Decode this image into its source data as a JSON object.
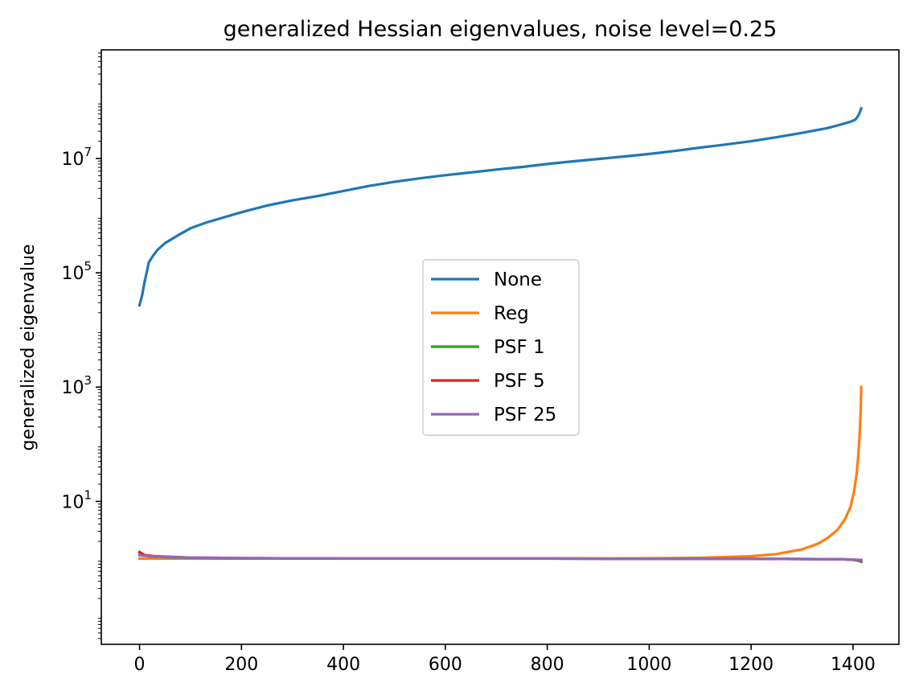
{
  "chart_data": {
    "type": "line",
    "title": "generalized Hessian eigenvalues, noise level=0.25",
    "xlabel": "",
    "ylabel": "generalized eigenvalue",
    "yscale": "log",
    "xlim": [
      -75,
      1490
    ],
    "ylim_log10": [
      -1.5,
      8.9
    ],
    "xticks": [
      0,
      200,
      400,
      600,
      800,
      1000,
      1200,
      1400
    ],
    "yticks": [
      {
        "exp": 1,
        "base": "10",
        "sup": "1"
      },
      {
        "exp": 3,
        "base": "10",
        "sup": "3"
      },
      {
        "exp": 5,
        "base": "10",
        "sup": "5"
      },
      {
        "exp": 7,
        "base": "10",
        "sup": "7"
      }
    ],
    "legend_position": "center",
    "grid": false,
    "series": [
      {
        "name": "None",
        "color": "#1f77b4",
        "points": [
          [
            0,
            27000
          ],
          [
            5,
            40000
          ],
          [
            10,
            70000
          ],
          [
            15,
            110000
          ],
          [
            18,
            150000
          ],
          [
            25,
            190000
          ],
          [
            35,
            250000
          ],
          [
            50,
            330000
          ],
          [
            75,
            450000
          ],
          [
            100,
            600000
          ],
          [
            130,
            750000
          ],
          [
            150,
            850000
          ],
          [
            200,
            1150000
          ],
          [
            250,
            1500000
          ],
          [
            300,
            1850000
          ],
          [
            350,
            2200000
          ],
          [
            400,
            2700000
          ],
          [
            450,
            3300000
          ],
          [
            500,
            3900000
          ],
          [
            550,
            4500000
          ],
          [
            600,
            5100000
          ],
          [
            650,
            5700000
          ],
          [
            700,
            6400000
          ],
          [
            750,
            7100000
          ],
          [
            800,
            8000000
          ],
          [
            850,
            8900000
          ],
          [
            900,
            9800000
          ],
          [
            950,
            10800000
          ],
          [
            1000,
            12000000
          ],
          [
            1050,
            13500000
          ],
          [
            1100,
            15500000
          ],
          [
            1150,
            17500000
          ],
          [
            1200,
            20000000
          ],
          [
            1250,
            23500000
          ],
          [
            1300,
            28000000
          ],
          [
            1350,
            34000000
          ],
          [
            1375,
            39000000
          ],
          [
            1395,
            44000000
          ],
          [
            1405,
            48000000
          ],
          [
            1410,
            56000000
          ],
          [
            1413,
            63000000
          ],
          [
            1416,
            75000000
          ]
        ]
      },
      {
        "name": "Reg",
        "color": "#ff7f0e",
        "points": [
          [
            0,
            1.0
          ],
          [
            100,
            1.0
          ],
          [
            200,
            1.0
          ],
          [
            400,
            1.0
          ],
          [
            600,
            1.0
          ],
          [
            800,
            1.0
          ],
          [
            1000,
            1.01
          ],
          [
            1100,
            1.03
          ],
          [
            1200,
            1.1
          ],
          [
            1250,
            1.2
          ],
          [
            1300,
            1.45
          ],
          [
            1330,
            1.8
          ],
          [
            1350,
            2.3
          ],
          [
            1370,
            3.2
          ],
          [
            1385,
            5.0
          ],
          [
            1395,
            8.0
          ],
          [
            1402,
            15.0
          ],
          [
            1407,
            30.0
          ],
          [
            1410,
            60.0
          ],
          [
            1413,
            150.0
          ],
          [
            1415,
            400.0
          ],
          [
            1416,
            1000.0
          ]
        ]
      },
      {
        "name": "PSF 1",
        "color": "#2ca02c",
        "points": [
          [
            0,
            1.2
          ],
          [
            20,
            1.1
          ],
          [
            50,
            1.06
          ],
          [
            100,
            1.03
          ],
          [
            200,
            1.01
          ],
          [
            400,
            1.0
          ],
          [
            600,
            1.0
          ],
          [
            800,
            1.0
          ],
          [
            1000,
            0.99
          ],
          [
            1200,
            0.99
          ],
          [
            1300,
            0.98
          ],
          [
            1380,
            0.97
          ],
          [
            1400,
            0.95
          ],
          [
            1410,
            0.92
          ],
          [
            1416,
            0.88
          ]
        ]
      },
      {
        "name": "PSF 5",
        "color": "#d62728",
        "points": [
          [
            0,
            1.3
          ],
          [
            10,
            1.15
          ],
          [
            30,
            1.1
          ],
          [
            100,
            1.04
          ],
          [
            200,
            1.02
          ],
          [
            400,
            1.0
          ],
          [
            600,
            1.0
          ],
          [
            800,
            1.0
          ],
          [
            1000,
            0.99
          ],
          [
            1200,
            0.99
          ],
          [
            1300,
            0.98
          ],
          [
            1380,
            0.97
          ],
          [
            1400,
            0.96
          ],
          [
            1416,
            0.93
          ]
        ]
      },
      {
        "name": "PSF 25",
        "color": "#9467bd",
        "points": [
          [
            0,
            1.15
          ],
          [
            20,
            1.1
          ],
          [
            50,
            1.07
          ],
          [
            100,
            1.04
          ],
          [
            200,
            1.02
          ],
          [
            400,
            1.0
          ],
          [
            600,
            1.0
          ],
          [
            800,
            1.0
          ],
          [
            1000,
            0.99
          ],
          [
            1200,
            0.99
          ],
          [
            1300,
            0.98
          ],
          [
            1380,
            0.97
          ],
          [
            1400,
            0.96
          ],
          [
            1416,
            0.95
          ]
        ]
      }
    ]
  }
}
